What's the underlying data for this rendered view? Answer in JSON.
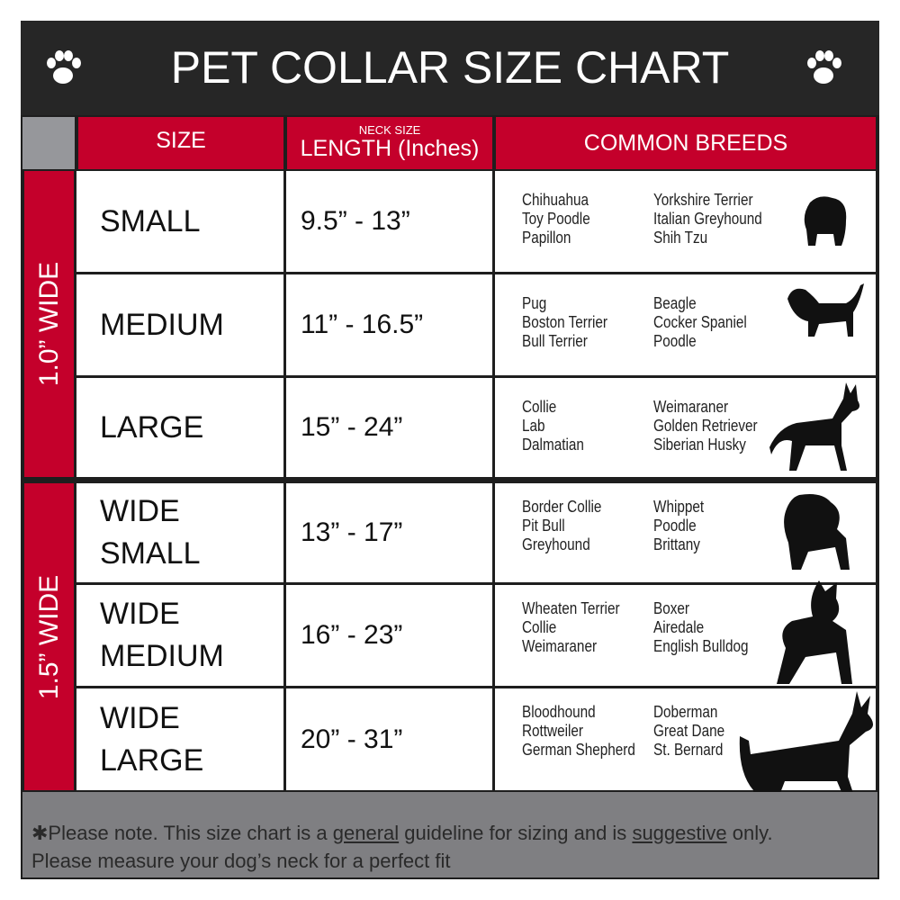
{
  "title": "PET COLLAR SIZE CHART",
  "icons": {
    "paw": "paw-icon",
    "dog": "dog-silhouette-icon"
  },
  "colors": {
    "accent": "#c4002b",
    "title_bg": "#262626",
    "footer_bg": "#7f7f82"
  },
  "header": {
    "size": "SIZE",
    "length_small": "NECK SIZE",
    "length": "LENGTH (Inches)",
    "breeds": "COMMON BREEDS"
  },
  "groups": [
    {
      "label": "1.0” WIDE"
    },
    {
      "label": "1.5” WIDE"
    }
  ],
  "rows": [
    {
      "size": "SMALL",
      "length": "9.5” - 13”",
      "breeds_a": [
        "Chihuahua",
        "Toy Poodle",
        "Papillon"
      ],
      "breeds_b": [
        "Yorkshire Terrier",
        "Italian Greyhound",
        "Shih Tzu"
      ]
    },
    {
      "size": "MEDIUM",
      "length": "11” - 16.5”",
      "breeds_a": [
        "Pug",
        "Boston Terrier",
        "Bull Terrier"
      ],
      "breeds_b": [
        "Beagle",
        "Cocker Spaniel",
        "Poodle"
      ]
    },
    {
      "size": "LARGE",
      "length": "15” - 24”",
      "breeds_a": [
        "Collie",
        "Lab",
        "Dalmatian"
      ],
      "breeds_b": [
        "Weimaraner",
        "Golden Retriever",
        "Siberian Husky"
      ]
    },
    {
      "size": "WIDE SMALL",
      "length": "13” - 17”",
      "breeds_a": [
        "Border Collie",
        "Pit Bull",
        "Greyhound"
      ],
      "breeds_b": [
        "Whippet",
        "Poodle",
        "Brittany"
      ]
    },
    {
      "size": "WIDE MEDIUM",
      "length": "16” - 23”",
      "breeds_a": [
        "Wheaten Terrier",
        "Collie",
        "Weimaraner"
      ],
      "breeds_b": [
        "Boxer",
        "Airedale",
        "English Bulldog"
      ]
    },
    {
      "size": "WIDE LARGE",
      "length": "20” - 31”",
      "breeds_a": [
        "Bloodhound",
        "Rottweiler",
        "German Shepherd"
      ],
      "breeds_b": [
        "Doberman",
        "Great Dane",
        "St. Bernard"
      ]
    }
  ],
  "footer": {
    "p1": "✱Please note. This size chart is a",
    "u1": "general",
    "p2": "guideline for sizing and is",
    "u2": "suggestive",
    "p3": "only.",
    "line2": "Please measure your dog’s neck for a perfect fit"
  }
}
